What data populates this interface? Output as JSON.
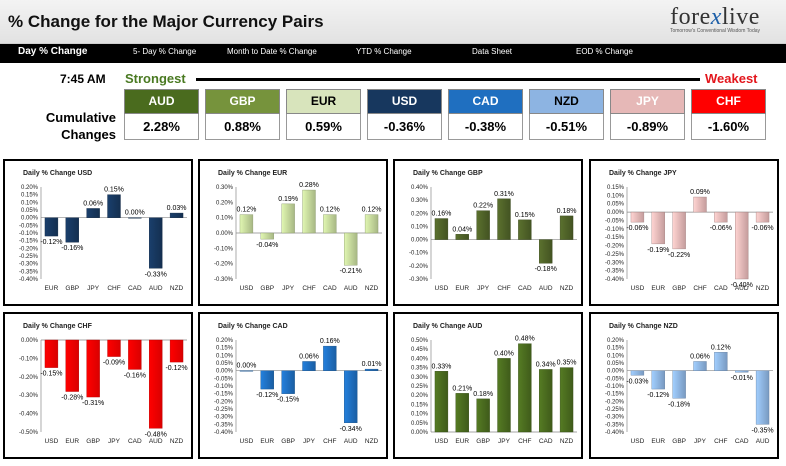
{
  "header": {
    "title": "% Change for the Major Currency Pairs",
    "logo_text_a": "fore",
    "logo_text_b": "x",
    "logo_text_c": "live",
    "logo_tagline": "Tomorrow's Conventional Wisdom Today"
  },
  "nav": [
    "Day % Change",
    "5- Day % Change",
    "Month to Date % Change",
    "YTD % Change",
    "Data Sheet",
    "EOD % Change"
  ],
  "summary": {
    "time": "7:45 AM",
    "strongest_label": "Strongest",
    "weakest_label": "Weakest",
    "cumulative_label": "Cumulative Changes",
    "tiles": [
      {
        "code": "AUD",
        "value": "2.28%",
        "color": "#4a6b1e",
        "text_color": "#ffffff"
      },
      {
        "code": "GBP",
        "value": "0.88%",
        "color": "#76933c",
        "text_color": "#ffffff"
      },
      {
        "code": "EUR",
        "value": "0.59%",
        "color": "#d8e4bc",
        "text_color": "#000000"
      },
      {
        "code": "USD",
        "value": "-0.36%",
        "color": "#17375e",
        "text_color": "#ffffff"
      },
      {
        "code": "CAD",
        "value": "-0.38%",
        "color": "#1f6fc0",
        "text_color": "#ffffff"
      },
      {
        "code": "NZD",
        "value": "-0.51%",
        "color": "#8db4e2",
        "text_color": "#000000"
      },
      {
        "code": "JPY",
        "value": "-0.89%",
        "color": "#e6b8b7",
        "text_color": "#ffffff"
      },
      {
        "code": "CHF",
        "value": "-1.60%",
        "color": "#ff0000",
        "text_color": "#ffffff"
      }
    ]
  },
  "chart_data": [
    {
      "type": "bar",
      "title": "Daily % Change USD",
      "categories": [
        "EUR",
        "GBP",
        "JPY",
        "CHF",
        "CAD",
        "AUD",
        "NZD"
      ],
      "values": [
        -0.12,
        -0.16,
        0.06,
        0.15,
        0.0,
        -0.33,
        0.03
      ],
      "labels": [
        "-0.12%",
        "-0.16%",
        "0.06%",
        "0.15%",
        "0.00%",
        "-0.33%",
        "0.03%"
      ],
      "ylim": [
        -0.4,
        0.2
      ],
      "ticks": [
        "0.20%",
        "0.15%",
        "0.10%",
        "0.05%",
        "0.00%",
        "-0.05%",
        "-0.10%",
        "-0.15%",
        "-0.20%",
        "-0.25%",
        "-0.30%",
        "-0.35%",
        "-0.40%"
      ],
      "color": "#17375e"
    },
    {
      "type": "bar",
      "title": "Daily % Change EUR",
      "categories": [
        "USD",
        "GBP",
        "JPY",
        "CHF",
        "CAD",
        "AUD",
        "NZD"
      ],
      "values": [
        0.12,
        -0.04,
        0.19,
        0.28,
        0.12,
        -0.21,
        0.12
      ],
      "labels": [
        "0.12%",
        "-0.04%",
        "0.19%",
        "0.28%",
        "0.12%",
        "-0.21%",
        "0.12%"
      ],
      "ylim": [
        -0.3,
        0.3
      ],
      "ticks": [
        "0.30%",
        "0.20%",
        "0.10%",
        "0.00%",
        "-0.10%",
        "-0.20%",
        "-0.30%"
      ],
      "color": "#c4d79b"
    },
    {
      "type": "bar",
      "title": "Daily % Change GBP",
      "categories": [
        "USD",
        "EUR",
        "JPY",
        "CHF",
        "CAD",
        "AUD",
        "NZD"
      ],
      "values": [
        0.16,
        0.04,
        0.22,
        0.31,
        0.15,
        -0.18,
        0.18
      ],
      "labels": [
        "0.16%",
        "0.04%",
        "0.22%",
        "0.31%",
        "0.15%",
        "-0.18%",
        "0.18%"
      ],
      "ylim": [
        -0.3,
        0.4
      ],
      "ticks": [
        "0.40%",
        "0.30%",
        "0.20%",
        "0.10%",
        "0.00%",
        "-0.10%",
        "-0.20%",
        "-0.30%"
      ],
      "color": "#4f6228"
    },
    {
      "type": "bar",
      "title": "Daily % Change JPY",
      "categories": [
        "USD",
        "EUR",
        "GBP",
        "CHF",
        "CAD",
        "AUD",
        "NZD"
      ],
      "values": [
        -0.06,
        -0.19,
        -0.22,
        0.09,
        -0.06,
        -0.4,
        -0.06
      ],
      "labels": [
        "-0.06%",
        "-0.19%",
        "-0.22%",
        "0.09%",
        "-0.06%",
        "-0.40%",
        "-0.06%"
      ],
      "ylim": [
        -0.4,
        0.15
      ],
      "ticks": [
        "0.15%",
        "0.10%",
        "0.05%",
        "0.00%",
        "-0.05%",
        "-0.10%",
        "-0.15%",
        "-0.20%",
        "-0.25%",
        "-0.30%",
        "-0.35%",
        "-0.40%"
      ],
      "color": "#e6b8b7"
    },
    {
      "type": "bar",
      "title": "Daily % Change CHF",
      "categories": [
        "USD",
        "EUR",
        "GBP",
        "JPY",
        "CAD",
        "AUD",
        "NZD"
      ],
      "values": [
        -0.15,
        -0.28,
        -0.31,
        -0.09,
        -0.16,
        -0.48,
        -0.12
      ],
      "labels": [
        "-0.15%",
        "-0.28%",
        "-0.31%",
        "-0.09%",
        "-0.16%",
        "-0.48%",
        "-0.12%"
      ],
      "ylim": [
        -0.5,
        0.0
      ],
      "ticks": [
        "0.00%",
        "-0.10%",
        "-0.20%",
        "-0.30%",
        "-0.40%",
        "-0.50%"
      ],
      "color": "#ff0000"
    },
    {
      "type": "bar",
      "title": "Daily % Change CAD",
      "categories": [
        "USD",
        "EUR",
        "GBP",
        "JPY",
        "CHF",
        "AUD",
        "NZD"
      ],
      "values": [
        0.0,
        -0.12,
        -0.15,
        0.06,
        0.16,
        -0.34,
        0.01
      ],
      "labels": [
        "0.00%",
        "-0.12%",
        "-0.15%",
        "0.06%",
        "0.16%",
        "-0.34%",
        "0.01%"
      ],
      "ylim": [
        -0.4,
        0.2
      ],
      "ticks": [
        "0.20%",
        "0.15%",
        "0.10%",
        "0.05%",
        "0.00%",
        "-0.05%",
        "-0.10%",
        "-0.15%",
        "-0.20%",
        "-0.25%",
        "-0.30%",
        "-0.35%",
        "-0.40%"
      ],
      "color": "#1f6fc0"
    },
    {
      "type": "bar",
      "title": "Daily % Change AUD",
      "categories": [
        "USD",
        "EUR",
        "GBP",
        "JPY",
        "CHF",
        "CAD",
        "NZD"
      ],
      "values": [
        0.33,
        0.21,
        0.18,
        0.4,
        0.48,
        0.34,
        0.35
      ],
      "labels": [
        "0.33%",
        "0.21%",
        "0.18%",
        "0.40%",
        "0.48%",
        "0.34%",
        "0.35%"
      ],
      "ylim": [
        0.0,
        0.5
      ],
      "ticks": [
        "0.50%",
        "0.45%",
        "0.40%",
        "0.35%",
        "0.30%",
        "0.25%",
        "0.20%",
        "0.15%",
        "0.10%",
        "0.05%",
        "0.00%"
      ],
      "color": "#4a6b1e"
    },
    {
      "type": "bar",
      "title": "Daily % Change NZD",
      "categories": [
        "USD",
        "EUR",
        "GBP",
        "JPY",
        "CHF",
        "CAD",
        "AUD"
      ],
      "values": [
        -0.03,
        -0.12,
        -0.18,
        0.06,
        0.12,
        -0.01,
        -0.35
      ],
      "labels": [
        "-0.03%",
        "-0.12%",
        "-0.18%",
        "0.06%",
        "0.12%",
        "-0.01%",
        "-0.35%"
      ],
      "ylim": [
        -0.4,
        0.2
      ],
      "ticks": [
        "0.20%",
        "0.15%",
        "0.10%",
        "0.05%",
        "0.00%",
        "-0.05%",
        "-0.10%",
        "-0.15%",
        "-0.20%",
        "-0.25%",
        "-0.30%",
        "-0.35%",
        "-0.40%"
      ],
      "color": "#8db4e2"
    }
  ]
}
